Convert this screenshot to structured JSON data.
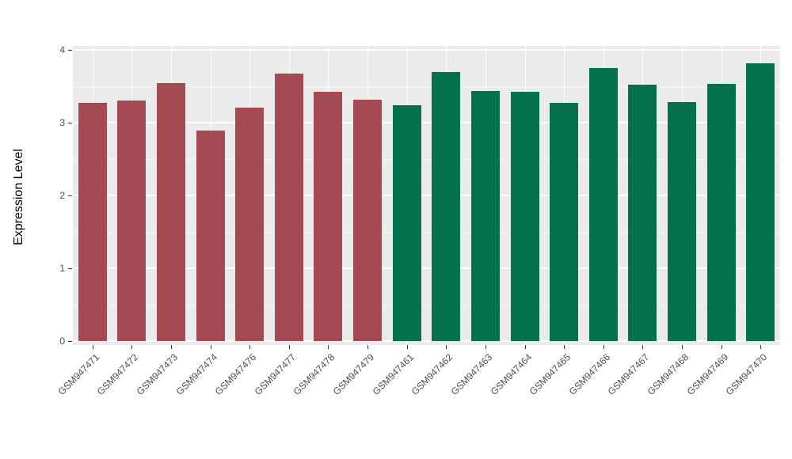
{
  "chart_data": {
    "type": "bar",
    "title": "",
    "xlabel": "",
    "ylabel": "Expression Level",
    "ylim": [
      0,
      4
    ],
    "yticks": [
      0,
      1,
      2,
      3,
      4
    ],
    "yticks_minor": [
      0.5,
      1.5,
      2.5,
      3.5
    ],
    "legend": "none",
    "grid": "on",
    "panel_background": "#EBEBEB",
    "group_colors": {
      "red": "#A34A52",
      "green": "#03714A"
    },
    "categories": [
      "GSM947471",
      "GSM947472",
      "GSM947473",
      "GSM947474",
      "GSM947476",
      "GSM947477",
      "GSM947478",
      "GSM947479",
      "GSM947461",
      "GSM947462",
      "GSM947463",
      "GSM947464",
      "GSM947465",
      "GSM947466",
      "GSM947467",
      "GSM947468",
      "GSM947469",
      "GSM947470"
    ],
    "values": [
      3.27,
      3.3,
      3.54,
      2.89,
      3.21,
      3.67,
      3.42,
      3.31,
      3.24,
      3.7,
      3.43,
      3.42,
      3.27,
      3.75,
      3.52,
      3.28,
      3.53,
      3.82
    ],
    "groups": [
      "red",
      "red",
      "red",
      "red",
      "red",
      "red",
      "red",
      "red",
      "green",
      "green",
      "green",
      "green",
      "green",
      "green",
      "green",
      "green",
      "green",
      "green"
    ]
  }
}
